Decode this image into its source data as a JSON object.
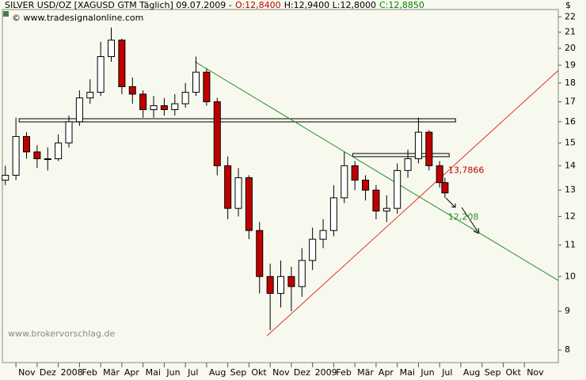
{
  "chart_data": {
    "type": "candlestick",
    "header": [
      {
        "text": "SILVER USD/OZ [XAGUSD GTM  Täglich] 09.07.2009 -",
        "color": "#000000"
      },
      {
        "text": "O:12,8400",
        "color": "#c00000"
      },
      {
        "text": "H:12,9400 L:12,8000",
        "color": "#000000"
      },
      {
        "text": "C:12,8850",
        "color": "#008000"
      }
    ],
    "copyright": "© www.tradesignalonline.com",
    "y_unit": "$",
    "watermark": "www.brokervorschlag.de",
    "log_scale": true,
    "grid": false,
    "ylim": [
      7.7,
      22.5
    ],
    "yticks": [
      8,
      9,
      10,
      11,
      12,
      13,
      14,
      15,
      16,
      17,
      18,
      19,
      20,
      21,
      22
    ],
    "xlim": [
      -0.64,
      25.6
    ],
    "xticks": [
      {
        "value": 0,
        "label": "Nov"
      },
      {
        "value": 1,
        "label": "Dez"
      },
      {
        "value": 2,
        "label": "2008"
      },
      {
        "value": 3,
        "label": "Feb"
      },
      {
        "value": 4,
        "label": "Mär"
      },
      {
        "value": 5,
        "label": "Apr"
      },
      {
        "value": 6,
        "label": "Mai"
      },
      {
        "value": 7,
        "label": "Jun"
      },
      {
        "value": 8,
        "label": "Jul"
      },
      {
        "value": 9,
        "label": "Aug"
      },
      {
        "value": 10,
        "label": "Sep"
      },
      {
        "value": 11,
        "label": "Okt"
      },
      {
        "value": 12,
        "label": "Nov"
      },
      {
        "value": 13,
        "label": "Dez"
      },
      {
        "value": 14,
        "label": "2009"
      },
      {
        "value": 15,
        "label": "Feb"
      },
      {
        "value": 16,
        "label": "Mär"
      },
      {
        "value": 17,
        "label": "Apr"
      },
      {
        "value": 18,
        "label": "Mai"
      },
      {
        "value": 19,
        "label": "Jun"
      },
      {
        "value": 20,
        "label": "Jul"
      },
      {
        "value": 21,
        "label": "Aug"
      },
      {
        "value": 22,
        "label": "Sep"
      },
      {
        "value": 23,
        "label": "Okt"
      },
      {
        "value": 24,
        "label": "Nov"
      }
    ],
    "up_color": "#ffffff",
    "down_color": "#c00000",
    "candles": {
      "x": [
        -0.5,
        0,
        0.5,
        1,
        1.5,
        2,
        2.5,
        3,
        3.5,
        4,
        4.5,
        5,
        5.5,
        6,
        6.5,
        7,
        7.5,
        8,
        8.5,
        9,
        9.5,
        10,
        10.5,
        11,
        11.5,
        12,
        12.5,
        13,
        13.5,
        14,
        14.5,
        15,
        15.5,
        16,
        16.5,
        17,
        17.5,
        18,
        18.5,
        19,
        19.5,
        20,
        20.25
      ],
      "open": [
        13.4,
        13.6,
        15.3,
        14.6,
        14.3,
        14.3,
        15.0,
        16.0,
        17.2,
        17.5,
        19.5,
        20.5,
        17.8,
        17.4,
        16.6,
        16.8,
        16.6,
        16.9,
        17.5,
        18.6,
        17.0,
        14.0,
        12.3,
        13.5,
        11.5,
        10.0,
        9.5,
        10.0,
        9.7,
        10.5,
        11.2,
        11.5,
        12.7,
        14.0,
        13.4,
        13.0,
        12.2,
        12.3,
        13.8,
        14.3,
        15.5,
        14.0,
        13.3
      ],
      "high": [
        14.0,
        16.2,
        15.5,
        14.9,
        14.8,
        15.4,
        16.3,
        17.6,
        18.2,
        20.4,
        21.3,
        20.6,
        18.3,
        17.6,
        17.3,
        17.2,
        17.4,
        18.0,
        19.5,
        18.8,
        17.2,
        14.4,
        13.9,
        13.6,
        11.8,
        10.4,
        10.5,
        10.3,
        10.9,
        11.6,
        11.9,
        13.2,
        14.6,
        14.2,
        13.6,
        13.2,
        12.8,
        14.1,
        14.7,
        16.2,
        15.6,
        14.2,
        13.5
      ],
      "low": [
        13.2,
        13.4,
        14.3,
        13.9,
        13.8,
        14.2,
        14.8,
        15.8,
        16.9,
        17.3,
        19.2,
        17.4,
        16.9,
        16.2,
        16.2,
        16.3,
        16.3,
        16.7,
        17.3,
        16.8,
        13.6,
        11.9,
        12.0,
        11.2,
        9.5,
        8.5,
        9.1,
        9.0,
        9.4,
        10.2,
        10.9,
        11.3,
        12.5,
        13.0,
        12.6,
        11.9,
        11.8,
        12.1,
        13.5,
        14.1,
        13.8,
        13.1,
        12.7
      ],
      "close": [
        13.6,
        15.3,
        14.6,
        14.3,
        14.3,
        15.0,
        16.0,
        17.2,
        17.5,
        19.5,
        20.5,
        17.8,
        17.4,
        16.6,
        16.8,
        16.6,
        16.9,
        17.5,
        18.6,
        17.0,
        14.0,
        12.3,
        13.5,
        11.5,
        10.0,
        9.5,
        10.0,
        9.7,
        10.5,
        11.2,
        11.5,
        12.7,
        14.0,
        13.4,
        13.0,
        12.2,
        12.3,
        13.8,
        14.3,
        15.5,
        14.0,
        13.3,
        12.89
      ]
    },
    "trendlines": [
      {
        "color": "#2e8b2e",
        "x": [
          8.45,
          25.6
        ],
        "y": [
          19.2,
          9.88
        ]
      },
      {
        "color": "#e03020",
        "x": [
          11.85,
          25.6
        ],
        "y": [
          8.35,
          18.7
        ]
      }
    ],
    "levels": [
      {
        "value": 16.07,
        "x": [
          0.15,
          20.75
        ]
      },
      {
        "value": 14.46,
        "x": [
          15.9,
          20.45
        ]
      }
    ],
    "annotations": [
      {
        "label": "13,7866",
        "value": 13.7866,
        "color": "#c00000"
      },
      {
        "label": "12,208",
        "value": 12.208,
        "color": "#2e8b2e"
      }
    ]
  }
}
